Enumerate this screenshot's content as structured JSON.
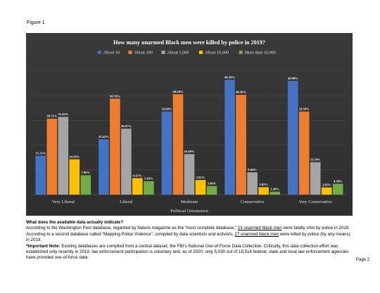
{
  "figure_label": "Figure 1",
  "chart_data": {
    "type": "bar",
    "title": "How many unarmed Black men were killed by police in 2019?",
    "xlabel": "Political Orientation",
    "ylabel": "",
    "ylim": [
      0,
      50
    ],
    "grid": true,
    "legend_position": "top",
    "categories": [
      "Very Liberal",
      "Liberal",
      "Moderate",
      "Conservative",
      "Very Conservative"
    ],
    "series": [
      {
        "name": "About 10",
        "color": "#4472c4",
        "values": [
          15.71,
          22.42,
          33.6,
          46.39,
          45.99
        ],
        "labels": [
          "15.71%",
          "22.42%",
          "33.60%",
          "46.39%",
          "45.99%"
        ]
      },
      {
        "name": "About 100",
        "color": "#ed7d31",
        "values": [
          30.71,
          38.79,
          40.59,
          40.36,
          33.58
        ],
        "labels": [
          "30.71%",
          "38.79%",
          "40.59%",
          "40.36%",
          "33.58%"
        ]
      },
      {
        "name": "About 1,000",
        "color": "#a5a5a5",
        "values": [
          31.43,
          26.67,
          16.4,
          9.04,
          13.14
        ],
        "labels": [
          "31.43%",
          "26.67%",
          "16.40%",
          "9.04%",
          "13.14%"
        ]
      },
      {
        "name": "About 10,000",
        "color": "#ffc000",
        "values": [
          14.29,
          6.67,
          5.91,
          3.01,
          2.92
        ],
        "labels": [
          "14.29%",
          "6.67%",
          "5.91%",
          "3.01%",
          "2.92%"
        ]
      },
      {
        "name": "More than 10,000",
        "color": "#70ad47",
        "values": [
          7.86,
          5.45,
          3.49,
          1.2,
          4.38
        ],
        "labels": [
          "7.86%",
          "5.45%",
          "3.49%",
          "1.20%",
          "4.38%"
        ]
      }
    ]
  },
  "text": {
    "heading": "What does the available data actually indicate?",
    "p1_a": "According to the Washington Post database, regarded by Nature magazine as the “most complete database,” ",
    "p1_u1": "13 unarmed black men",
    "p1_b": " were fatally shot by police in 2019. According to a second database called “Mapping Police Violence”, compiled by data scientists and activists, ",
    "p1_u2": "27 unarmed black men",
    "p1_c": " were killed by police (by any means) in 2019.",
    "note_label": "*Important Note:",
    "note_body": " Existing databases are compiled from a central dataset, the FBI’s National Use-of-Force Data Collection. Critically, this data collection effort was established only recently in 2019, law enforcement participation is voluntary and, as of 2020, only 5,030 out of 18,514 federal, state and local law enforcement agencies have provided use-of-force data."
  },
  "page_number": "Page 2"
}
